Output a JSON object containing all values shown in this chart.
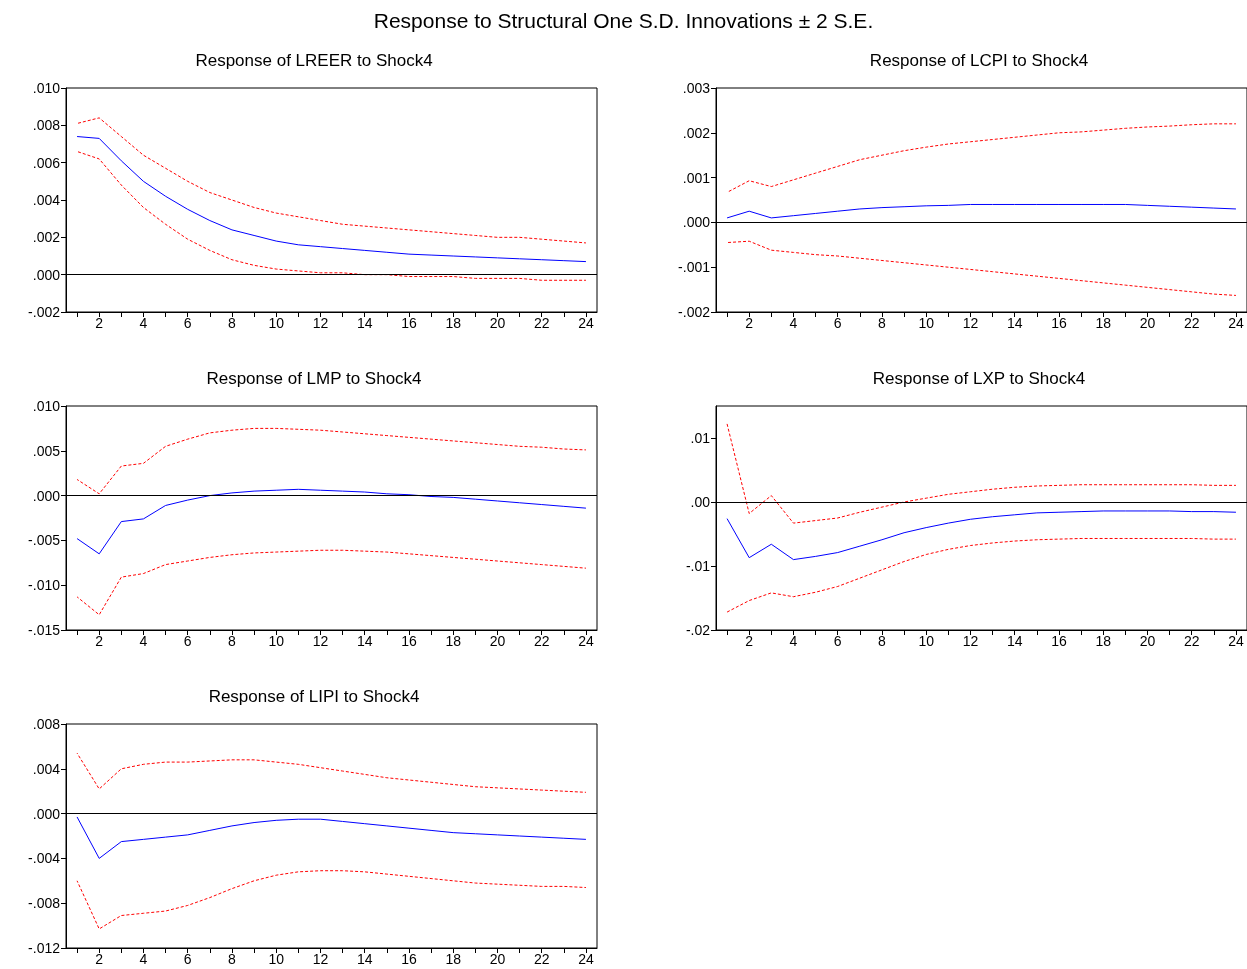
{
  "chart_data": [
    {
      "type": "line",
      "title": "Response of LREER to Shock4",
      "annotations": [
        "Response to Structural One S.D. Innovations ± 2 S.E."
      ],
      "x": [
        1,
        2,
        3,
        4,
        5,
        6,
        7,
        8,
        9,
        10,
        11,
        12,
        13,
        14,
        15,
        16,
        17,
        18,
        19,
        20,
        21,
        22,
        23,
        24
      ],
      "xlim": [
        0.5,
        24.5
      ],
      "xticks": [
        {
          "value": 1,
          "label": null
        },
        2,
        {
          "value": 3,
          "label": null
        },
        4,
        {
          "value": 5,
          "label": null
        },
        6,
        {
          "value": 7,
          "label": null
        },
        8,
        {
          "value": 9,
          "label": null
        },
        10,
        {
          "value": 11,
          "label": null
        },
        12,
        {
          "value": 13,
          "label": null
        },
        14,
        {
          "value": 15,
          "label": null
        },
        16,
        {
          "value": 17,
          "label": null
        },
        18,
        {
          "value": 19,
          "label": null
        },
        20,
        {
          "value": 21,
          "label": null
        },
        22,
        {
          "value": 23,
          "label": null
        },
        24
      ],
      "ylim": [
        -0.002,
        0.01
      ],
      "yticks": [
        {
          "value": -0.002,
          "label": "-.002"
        },
        {
          "value": 0,
          "label": ".000"
        },
        {
          "value": 0.002,
          "label": ".002"
        },
        {
          "value": 0.004,
          "label": ".004"
        },
        {
          "value": 0.006,
          "label": ".006"
        },
        {
          "value": 0.008,
          "label": ".008"
        },
        {
          "value": 0.01,
          "label": ".010"
        }
      ],
      "ref_lines": [
        {
          "axis": "y",
          "value": 0,
          "color": "#000000"
        }
      ],
      "series": [
        {
          "color": "#0000ff",
          "line_style": "solid",
          "values": [
            0.0074,
            0.0073,
            0.0061,
            0.005,
            0.0042,
            0.0035,
            0.0029,
            0.0024,
            0.0021,
            0.0018,
            0.0016,
            0.0015,
            0.0014,
            0.0013,
            0.0012,
            0.0011,
            0.00105,
            0.001,
            0.00095,
            0.0009,
            0.00085,
            0.0008,
            0.00075,
            0.0007
          ]
        },
        {
          "color": "#ff0000",
          "line_style": "dashed",
          "values": [
            0.0081,
            0.0084,
            0.0074,
            0.0064,
            0.0057,
            0.005,
            0.0044,
            0.004,
            0.0036,
            0.0033,
            0.0031,
            0.0029,
            0.0027,
            0.0026,
            0.0025,
            0.0024,
            0.0023,
            0.0022,
            0.0021,
            0.002,
            0.002,
            0.0019,
            0.0018,
            0.0017
          ]
        },
        {
          "color": "#ff0000",
          "line_style": "dashed",
          "values": [
            0.0066,
            0.0062,
            0.0048,
            0.0036,
            0.0027,
            0.0019,
            0.0013,
            0.0008,
            0.0005,
            0.0003,
            0.0002,
            0.0001,
            0.0001,
            0.0,
            0.0,
            -0.0001,
            -0.0001,
            -0.0001,
            -0.0002,
            -0.0002,
            -0.0002,
            -0.0003,
            -0.0003,
            -0.0003
          ]
        }
      ]
    },
    {
      "type": "line",
      "title": "Response of LCPI to Shock4",
      "x": [
        1,
        2,
        3,
        4,
        5,
        6,
        7,
        8,
        9,
        10,
        11,
        12,
        13,
        14,
        15,
        16,
        17,
        18,
        19,
        20,
        21,
        22,
        23,
        24
      ],
      "xlim": [
        0.5,
        24.5
      ],
      "xticks": [
        {
          "value": 1,
          "label": null
        },
        2,
        {
          "value": 3,
          "label": null
        },
        4,
        {
          "value": 5,
          "label": null
        },
        6,
        {
          "value": 7,
          "label": null
        },
        8,
        {
          "value": 9,
          "label": null
        },
        10,
        {
          "value": 11,
          "label": null
        },
        12,
        {
          "value": 13,
          "label": null
        },
        14,
        {
          "value": 15,
          "label": null
        },
        16,
        {
          "value": 17,
          "label": null
        },
        18,
        {
          "value": 19,
          "label": null
        },
        20,
        {
          "value": 21,
          "label": null
        },
        22,
        {
          "value": 23,
          "label": null
        },
        24
      ],
      "ylim": [
        -0.002,
        0.003
      ],
      "yticks": [
        {
          "value": -0.002,
          "label": "-.002"
        },
        {
          "value": -0.001,
          "label": "-.001"
        },
        {
          "value": 0,
          "label": ".000"
        },
        {
          "value": 0.001,
          "label": ".001"
        },
        {
          "value": 0.002,
          "label": ".002"
        },
        {
          "value": 0.003,
          "label": ".003"
        }
      ],
      "ref_lines": [
        {
          "axis": "y",
          "value": 0,
          "color": "#000000"
        }
      ],
      "series": [
        {
          "color": "#0000ff",
          "line_style": "solid",
          "values": [
            0.0001,
            0.00025,
            0.0001,
            0.00015,
            0.0002,
            0.00025,
            0.0003,
            0.00033,
            0.00035,
            0.00037,
            0.00038,
            0.0004,
            0.0004,
            0.0004,
            0.0004,
            0.0004,
            0.0004,
            0.0004,
            0.0004,
            0.00038,
            0.00036,
            0.00034,
            0.00032,
            0.0003
          ]
        },
        {
          "color": "#ff0000",
          "line_style": "dashed",
          "values": [
            0.00067,
            0.00093,
            0.0008,
            0.00095,
            0.0011,
            0.00125,
            0.0014,
            0.0015,
            0.0016,
            0.00168,
            0.00175,
            0.0018,
            0.00185,
            0.0019,
            0.00195,
            0.002,
            0.00202,
            0.00206,
            0.0021,
            0.00213,
            0.00215,
            0.00218,
            0.0022,
            0.0022
          ]
        },
        {
          "color": "#ff0000",
          "line_style": "dashed",
          "values": [
            -0.00045,
            -0.00042,
            -0.00062,
            -0.00067,
            -0.00072,
            -0.00075,
            -0.0008,
            -0.00085,
            -0.0009,
            -0.00095,
            -0.001,
            -0.00105,
            -0.0011,
            -0.00115,
            -0.0012,
            -0.00125,
            -0.0013,
            -0.00135,
            -0.0014,
            -0.00145,
            -0.0015,
            -0.00155,
            -0.0016,
            -0.00163
          ]
        }
      ]
    },
    {
      "type": "line",
      "title": "Response of LMP to Shock4",
      "x": [
        1,
        2,
        3,
        4,
        5,
        6,
        7,
        8,
        9,
        10,
        11,
        12,
        13,
        14,
        15,
        16,
        17,
        18,
        19,
        20,
        21,
        22,
        23,
        24
      ],
      "xlim": [
        0.5,
        24.5
      ],
      "xticks": [
        {
          "value": 1,
          "label": null
        },
        2,
        {
          "value": 3,
          "label": null
        },
        4,
        {
          "value": 5,
          "label": null
        },
        6,
        {
          "value": 7,
          "label": null
        },
        8,
        {
          "value": 9,
          "label": null
        },
        10,
        {
          "value": 11,
          "label": null
        },
        12,
        {
          "value": 13,
          "label": null
        },
        14,
        {
          "value": 15,
          "label": null
        },
        16,
        {
          "value": 17,
          "label": null
        },
        18,
        {
          "value": 19,
          "label": null
        },
        20,
        {
          "value": 21,
          "label": null
        },
        22,
        {
          "value": 23,
          "label": null
        },
        24
      ],
      "ylim": [
        -0.015,
        0.01
      ],
      "yticks": [
        {
          "value": -0.015,
          "label": "-.015"
        },
        {
          "value": -0.01,
          "label": "-.010"
        },
        {
          "value": -0.005,
          "label": "-.005"
        },
        {
          "value": 0,
          "label": ".000"
        },
        {
          "value": 0.005,
          "label": ".005"
        },
        {
          "value": 0.01,
          "label": ".010"
        }
      ],
      "ref_lines": [
        {
          "axis": "y",
          "value": 0,
          "color": "#000000"
        }
      ],
      "series": [
        {
          "color": "#0000ff",
          "line_style": "solid",
          "values": [
            -0.0048,
            -0.0065,
            -0.0029,
            -0.0026,
            -0.0011,
            -0.0005,
            0.0,
            0.0003,
            0.0005,
            0.0006,
            0.0007,
            0.0006,
            0.0005,
            0.0004,
            0.0002,
            0.0001,
            -0.0001,
            -0.0002,
            -0.0004,
            -0.0006,
            -0.0008,
            -0.001,
            -0.0012,
            -0.0014
          ]
        },
        {
          "color": "#ff0000",
          "line_style": "dashed",
          "values": [
            0.0018,
            0.0002,
            0.0033,
            0.0036,
            0.0055,
            0.0063,
            0.007,
            0.0073,
            0.0075,
            0.0075,
            0.0074,
            0.0073,
            0.0071,
            0.0069,
            0.0067,
            0.0065,
            0.0063,
            0.0061,
            0.0059,
            0.0057,
            0.0055,
            0.0054,
            0.0052,
            0.0051
          ]
        },
        {
          "color": "#ff0000",
          "line_style": "dashed",
          "values": [
            -0.0113,
            -0.0133,
            -0.0091,
            -0.0087,
            -0.0077,
            -0.0073,
            -0.0069,
            -0.0066,
            -0.0064,
            -0.0063,
            -0.0062,
            -0.0061,
            -0.0061,
            -0.0062,
            -0.0063,
            -0.0065,
            -0.0067,
            -0.0069,
            -0.0071,
            -0.0073,
            -0.0075,
            -0.0077,
            -0.0079,
            -0.0081
          ]
        }
      ]
    },
    {
      "type": "line",
      "title": "Response of LXP to Shock4",
      "x": [
        1,
        2,
        3,
        4,
        5,
        6,
        7,
        8,
        9,
        10,
        11,
        12,
        13,
        14,
        15,
        16,
        17,
        18,
        19,
        20,
        21,
        22,
        23,
        24
      ],
      "xlim": [
        0.5,
        24.5
      ],
      "xticks": [
        {
          "value": 1,
          "label": null
        },
        2,
        {
          "value": 3,
          "label": null
        },
        4,
        {
          "value": 5,
          "label": null
        },
        6,
        {
          "value": 7,
          "label": null
        },
        8,
        {
          "value": 9,
          "label": null
        },
        10,
        {
          "value": 11,
          "label": null
        },
        12,
        {
          "value": 13,
          "label": null
        },
        14,
        {
          "value": 15,
          "label": null
        },
        16,
        {
          "value": 17,
          "label": null
        },
        18,
        {
          "value": 19,
          "label": null
        },
        20,
        {
          "value": 21,
          "label": null
        },
        22,
        {
          "value": 23,
          "label": null
        },
        24
      ],
      "ylim": [
        -0.02,
        0.015
      ],
      "yticks": [
        {
          "value": -0.02,
          "label": "-.02"
        },
        {
          "value": -0.01,
          "label": "-.01"
        },
        {
          "value": 0,
          "label": ".00"
        },
        {
          "value": 0.01,
          "label": ".01"
        }
      ],
      "ref_lines": [
        {
          "axis": "y",
          "value": 0,
          "color": "#000000"
        }
      ],
      "series": [
        {
          "color": "#0000ff",
          "line_style": "solid",
          "values": [
            -0.0026,
            -0.0087,
            -0.0066,
            -0.009,
            -0.0085,
            -0.0079,
            -0.0069,
            -0.0059,
            -0.0048,
            -0.004,
            -0.0033,
            -0.0027,
            -0.0023,
            -0.002,
            -0.0017,
            -0.0016,
            -0.0015,
            -0.0014,
            -0.0014,
            -0.0014,
            -0.0014,
            -0.0015,
            -0.0015,
            -0.0016
          ]
        },
        {
          "color": "#ff0000",
          "line_style": "dashed",
          "values": [
            0.0122,
            -0.0018,
            0.001,
            -0.0033,
            -0.0029,
            -0.0025,
            -0.0016,
            -0.0008,
            0.0,
            0.0006,
            0.0012,
            0.0016,
            0.002,
            0.0023,
            0.0025,
            0.0026,
            0.0027,
            0.0027,
            0.0027,
            0.0027,
            0.0027,
            0.0027,
            0.0026,
            0.0026
          ]
        },
        {
          "color": "#ff0000",
          "line_style": "dashed",
          "values": [
            -0.0172,
            -0.0154,
            -0.0142,
            -0.0148,
            -0.0141,
            -0.0132,
            -0.0119,
            -0.0106,
            -0.0093,
            -0.0082,
            -0.0074,
            -0.0068,
            -0.0064,
            -0.0061,
            -0.0059,
            -0.0058,
            -0.0057,
            -0.0057,
            -0.0057,
            -0.0057,
            -0.0057,
            -0.0057,
            -0.0058,
            -0.0058
          ]
        }
      ]
    },
    {
      "type": "line",
      "title": "Response of LIPI to Shock4",
      "x": [
        1,
        2,
        3,
        4,
        5,
        6,
        7,
        8,
        9,
        10,
        11,
        12,
        13,
        14,
        15,
        16,
        17,
        18,
        19,
        20,
        21,
        22,
        23,
        24
      ],
      "xlim": [
        0.5,
        24.5
      ],
      "xticks": [
        {
          "value": 1,
          "label": null
        },
        2,
        {
          "value": 3,
          "label": null
        },
        4,
        {
          "value": 5,
          "label": null
        },
        6,
        {
          "value": 7,
          "label": null
        },
        8,
        {
          "value": 9,
          "label": null
        },
        10,
        {
          "value": 11,
          "label": null
        },
        12,
        {
          "value": 13,
          "label": null
        },
        14,
        {
          "value": 15,
          "label": null
        },
        16,
        {
          "value": 17,
          "label": null
        },
        18,
        {
          "value": 19,
          "label": null
        },
        20,
        {
          "value": 21,
          "label": null
        },
        22,
        {
          "value": 23,
          "label": null
        },
        24
      ],
      "ylim": [
        -0.012,
        0.008
      ],
      "yticks": [
        {
          "value": -0.012,
          "label": "-.012"
        },
        {
          "value": -0.008,
          "label": "-.008"
        },
        {
          "value": -0.004,
          "label": "-.004"
        },
        {
          "value": 0,
          "label": ".000"
        },
        {
          "value": 0.004,
          "label": ".004"
        },
        {
          "value": 0.008,
          "label": ".008"
        }
      ],
      "ref_lines": [
        {
          "axis": "y",
          "value": 0,
          "color": "#000000"
        }
      ],
      "series": [
        {
          "color": "#0000ff",
          "line_style": "solid",
          "values": [
            -0.0003,
            -0.004,
            -0.0025,
            -0.0023,
            -0.0021,
            -0.0019,
            -0.0015,
            -0.0011,
            -0.0008,
            -0.0006,
            -0.0005,
            -0.0005,
            -0.0007,
            -0.0009,
            -0.0011,
            -0.0013,
            -0.0015,
            -0.0017,
            -0.0018,
            -0.0019,
            -0.002,
            -0.0021,
            -0.0022,
            -0.0023
          ]
        },
        {
          "color": "#ff0000",
          "line_style": "dashed",
          "values": [
            0.0054,
            0.0022,
            0.004,
            0.0044,
            0.0046,
            0.0046,
            0.0047,
            0.0048,
            0.0048,
            0.0046,
            0.0044,
            0.0041,
            0.0038,
            0.0035,
            0.0032,
            0.003,
            0.0028,
            0.0026,
            0.0024,
            0.0023,
            0.0022,
            0.0021,
            0.002,
            0.0019
          ]
        },
        {
          "color": "#ff0000",
          "line_style": "dashed",
          "values": [
            -0.006,
            -0.0103,
            -0.0091,
            -0.0089,
            -0.0087,
            -0.0082,
            -0.0075,
            -0.0067,
            -0.006,
            -0.0055,
            -0.0052,
            -0.0051,
            -0.0051,
            -0.0052,
            -0.0054,
            -0.0056,
            -0.0058,
            -0.006,
            -0.0062,
            -0.0063,
            -0.0064,
            -0.0065,
            -0.0065,
            -0.0066
          ]
        }
      ]
    }
  ]
}
